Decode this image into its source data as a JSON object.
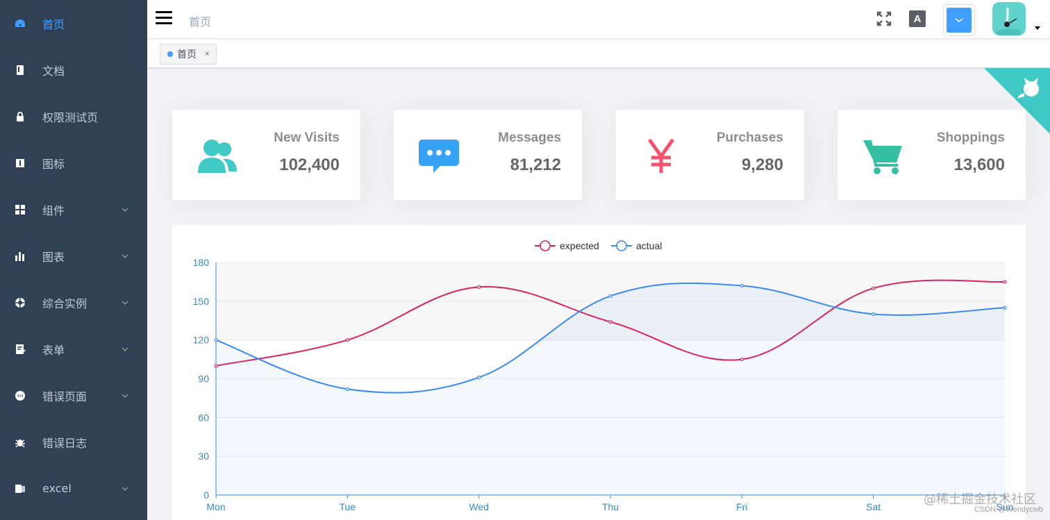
{
  "sidebar": {
    "items": [
      {
        "label": "首页",
        "icon": "dashboard-icon",
        "active": true,
        "has_children": false
      },
      {
        "label": "文档",
        "icon": "documentation-icon",
        "active": false,
        "has_children": false
      },
      {
        "label": "权限测试页",
        "icon": "lock-icon",
        "active": false,
        "has_children": false
      },
      {
        "label": "图标",
        "icon": "icon-icon",
        "active": false,
        "has_children": false
      },
      {
        "label": "组件",
        "icon": "component-icon",
        "active": false,
        "has_children": true
      },
      {
        "label": "图表",
        "icon": "chart-icon",
        "active": false,
        "has_children": true
      },
      {
        "label": "综合实例",
        "icon": "example-icon",
        "active": false,
        "has_children": true
      },
      {
        "label": "表单",
        "icon": "form-icon",
        "active": false,
        "has_children": true
      },
      {
        "label": "错误页面",
        "icon": "404-icon",
        "active": false,
        "has_children": true
      },
      {
        "label": "错误日志",
        "icon": "bug-icon",
        "active": false,
        "has_children": false
      },
      {
        "label": "excel",
        "icon": "excel-icon",
        "active": false,
        "has_children": true
      }
    ]
  },
  "navbar": {
    "breadcrumb": "首页",
    "lang_label": "A"
  },
  "tags": [
    {
      "label": "首页",
      "close": "×"
    }
  ],
  "panels": [
    {
      "title": "New Visits",
      "value": "102,400",
      "icon": "peoples-icon",
      "color": "#40c9c6"
    },
    {
      "title": "Messages",
      "value": "81,212",
      "icon": "message-icon",
      "color": "#36a3f7"
    },
    {
      "title": "Purchases",
      "value": "9,280",
      "icon": "money-icon",
      "color": "#f4516c"
    },
    {
      "title": "Shoppings",
      "value": "13,600",
      "icon": "shopping-icon",
      "color": "#34bfa3"
    }
  ],
  "colors": {
    "accent": "#409eff",
    "sidebar_bg": "#304156",
    "expected": "#e0215e",
    "actual": "#3888fa"
  },
  "chart_data": {
    "type": "line",
    "categories": [
      "Mon",
      "Tue",
      "Wed",
      "Thu",
      "Fri",
      "Sat",
      "Sun"
    ],
    "series": [
      {
        "name": "expected",
        "values": [
          100,
          120,
          161,
          134,
          105,
          160,
          165
        ],
        "color": "#e0215e"
      },
      {
        "name": "actual",
        "values": [
          120,
          82,
          91,
          154,
          162,
          140,
          145
        ],
        "color": "#3888fa"
      }
    ],
    "ylim": [
      0,
      180
    ],
    "yticks": [
      0,
      30,
      60,
      90,
      120,
      150,
      180
    ],
    "legend": "top-center",
    "smooth": true
  },
  "watermark": {
    "main": "@稀土掘金技术社区",
    "sub": "CSDN @Wendycwb"
  }
}
